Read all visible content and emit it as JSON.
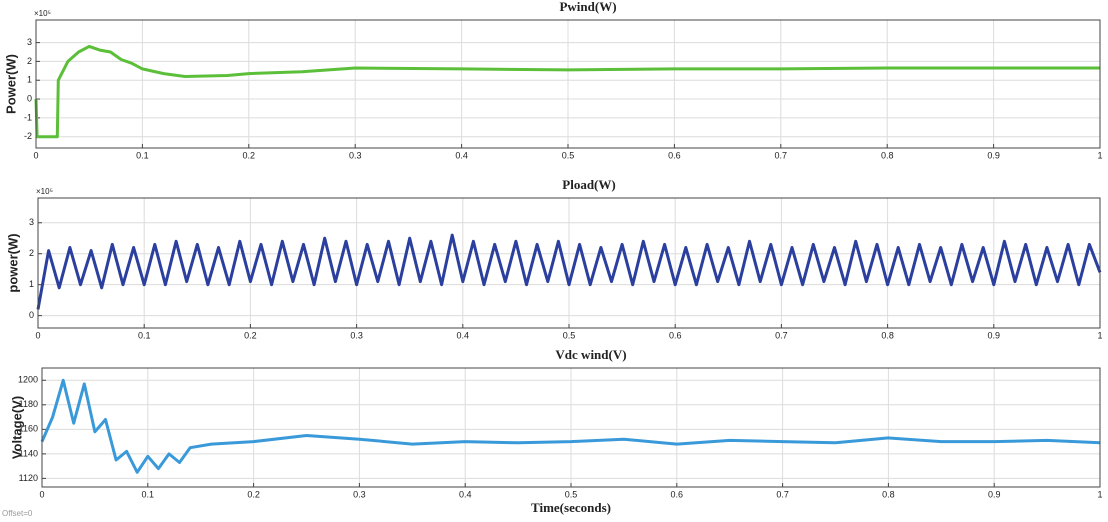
{
  "chart_data": [
    {
      "type": "line",
      "title": "Pwind(W)",
      "ylabel": "Power(W)",
      "exponent_label": "×10⁵",
      "color": "#5cbf3a",
      "grid": true,
      "x": [
        0,
        0.001,
        0.02,
        0.021,
        0.03,
        0.04,
        0.05,
        0.06,
        0.07,
        0.08,
        0.09,
        0.1,
        0.12,
        0.14,
        0.18,
        0.2,
        0.25,
        0.3,
        0.4,
        0.5,
        0.6,
        0.7,
        0.8,
        0.9,
        1
      ],
      "values": [
        0,
        -2,
        -2,
        1,
        2,
        2.5,
        2.8,
        2.6,
        2.5,
        2.1,
        1.9,
        1.6,
        1.35,
        1.2,
        1.25,
        1.35,
        1.45,
        1.65,
        1.6,
        1.55,
        1.6,
        1.6,
        1.65,
        1.65,
        1.65
      ],
      "xlim": [
        0,
        1
      ],
      "ylim": [
        -2.6,
        4.2
      ],
      "xticks": [
        0,
        0.1,
        0.2,
        0.3,
        0.4,
        0.5,
        0.6,
        0.7,
        0.8,
        0.9,
        1
      ],
      "yticks": [
        -2,
        -1,
        0,
        1,
        2,
        3
      ]
    },
    {
      "type": "line",
      "title": "Pload(W)",
      "ylabel": "power(W)",
      "exponent_label": "×10⁵",
      "color": "#2b3f9e",
      "grid": true,
      "x": [
        0,
        0.01,
        0.02,
        0.03,
        0.04,
        0.05,
        0.06,
        0.07,
        0.08,
        0.09,
        0.1,
        0.11,
        0.12,
        0.13,
        0.14,
        0.15,
        0.16,
        0.17,
        0.18,
        0.19,
        0.2,
        0.21,
        0.22,
        0.23,
        0.24,
        0.25,
        0.26,
        0.27,
        0.28,
        0.29,
        0.3,
        0.31,
        0.32,
        0.33,
        0.34,
        0.35,
        0.36,
        0.37,
        0.38,
        0.39,
        0.4,
        0.41,
        0.42,
        0.43,
        0.44,
        0.45,
        0.46,
        0.47,
        0.48,
        0.49,
        0.5,
        0.51,
        0.52,
        0.53,
        0.54,
        0.55,
        0.56,
        0.57,
        0.58,
        0.59,
        0.6,
        0.61,
        0.62,
        0.63,
        0.64,
        0.65,
        0.66,
        0.67,
        0.68,
        0.69,
        0.7,
        0.71,
        0.72,
        0.73,
        0.74,
        0.75,
        0.76,
        0.77,
        0.78,
        0.79,
        0.8,
        0.81,
        0.82,
        0.83,
        0.84,
        0.85,
        0.86,
        0.87,
        0.88,
        0.89,
        0.9,
        0.91,
        0.92,
        0.93,
        0.94,
        0.95,
        0.96,
        0.97,
        0.98,
        0.99,
        1
      ],
      "values": [
        0.2,
        2.1,
        0.9,
        2.2,
        1.0,
        2.1,
        0.9,
        2.3,
        1.0,
        2.2,
        1.0,
        2.3,
        1.0,
        2.4,
        1.1,
        2.3,
        1.0,
        2.2,
        1.0,
        2.4,
        1.1,
        2.3,
        1.0,
        2.4,
        1.1,
        2.3,
        1.0,
        2.5,
        1.1,
        2.4,
        1.0,
        2.3,
        1.1,
        2.4,
        1.0,
        2.5,
        1.1,
        2.4,
        1.0,
        2.6,
        1.1,
        2.4,
        1.0,
        2.3,
        1.1,
        2.4,
        1.0,
        2.3,
        1.1,
        2.4,
        1.0,
        2.3,
        1.0,
        2.2,
        1.1,
        2.3,
        1.0,
        2.4,
        1.1,
        2.3,
        1.0,
        2.2,
        1.0,
        2.3,
        1.1,
        2.2,
        1.0,
        2.4,
        1.1,
        2.3,
        1.0,
        2.2,
        1.0,
        2.3,
        1.1,
        2.2,
        1.0,
        2.4,
        1.1,
        2.3,
        1.0,
        2.2,
        1.0,
        2.3,
        1.1,
        2.2,
        1.0,
        2.3,
        1.1,
        2.2,
        1.0,
        2.4,
        1.1,
        2.3,
        1.0,
        2.2,
        1.1,
        2.3,
        1.0,
        2.3,
        1.4
      ],
      "xlim": [
        0,
        1
      ],
      "ylim": [
        -0.4,
        3.8
      ],
      "xticks": [
        0,
        0.1,
        0.2,
        0.3,
        0.4,
        0.5,
        0.6,
        0.7,
        0.8,
        0.9,
        1
      ],
      "yticks": [
        0,
        1,
        2,
        3
      ]
    },
    {
      "type": "line",
      "title": "Vdc wind(V)",
      "ylabel": "Voltage(V)",
      "xlabel": "Time(seconds)",
      "color": "#3a9ad9",
      "grid": true,
      "x": [
        0,
        0.01,
        0.02,
        0.03,
        0.04,
        0.05,
        0.06,
        0.07,
        0.08,
        0.09,
        0.1,
        0.11,
        0.12,
        0.13,
        0.14,
        0.16,
        0.2,
        0.25,
        0.3,
        0.35,
        0.4,
        0.45,
        0.5,
        0.55,
        0.6,
        0.65,
        0.7,
        0.75,
        0.8,
        0.85,
        0.9,
        0.95,
        1
      ],
      "values": [
        1150,
        1170,
        1200,
        1165,
        1197,
        1158,
        1168,
        1135,
        1142,
        1125,
        1138,
        1128,
        1140,
        1133,
        1145,
        1148,
        1150,
        1155,
        1152,
        1148,
        1150,
        1149,
        1150,
        1152,
        1148,
        1151,
        1150,
        1149,
        1153,
        1150,
        1150,
        1151,
        1149
      ],
      "xlim": [
        0,
        1
      ],
      "ylim": [
        1113,
        1210
      ],
      "xticks": [
        0,
        0.1,
        0.2,
        0.3,
        0.4,
        0.5,
        0.6,
        0.7,
        0.8,
        0.9,
        1
      ],
      "yticks": [
        1120,
        1140,
        1160,
        1180,
        1200
      ]
    }
  ],
  "offset_label": "Offset=0"
}
